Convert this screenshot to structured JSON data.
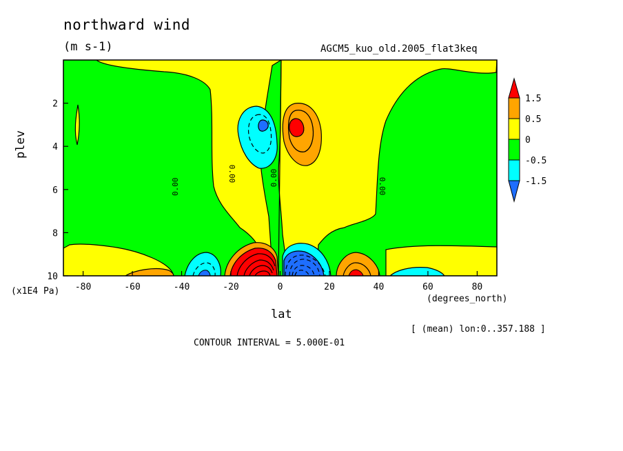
{
  "chart_data": {
    "type": "heatmap",
    "title": "northward wind",
    "units": "(m s-1)",
    "run_label": "AGCM5_kuo_old.2005_flat3keq",
    "xlabel": "lat",
    "x_unit_label": "(degrees_north)",
    "ylabel": "plev",
    "y_unit_label": "(x1E4 Pa)",
    "mean_note": "[ (mean) lon:0..357.188 ]",
    "contour_interval": "CONTOUR INTERVAL = 5.000E-01",
    "xlim": [
      -88,
      88
    ],
    "ylim": [
      10,
      0
    ],
    "x_ticks": [
      "-80",
      "-60",
      "-40",
      "-20",
      "0",
      "20",
      "40",
      "60",
      "80"
    ],
    "y_ticks": [
      "2",
      "4",
      "6",
      "8",
      "10"
    ],
    "contour_labels": [
      "0.00",
      "0.00",
      "0.00",
      "0.00"
    ],
    "legend": {
      "levels": [
        "1.5",
        "0.5",
        "0",
        "-0.5",
        "-1.5"
      ],
      "colors": [
        "#ff0000",
        "#ffa500",
        "#ffff00",
        "#00ff00",
        "#00ffff",
        "#1e6eff"
      ]
    },
    "features": [
      {
        "name": "southern positive maximum",
        "lat": -6,
        "plev": 9.7,
        "value": 2.5
      },
      {
        "name": "northern negative minimum",
        "lat": 8,
        "plev": 9.7,
        "value": -2.5
      },
      {
        "name": "upper negative cell",
        "lat": -8,
        "plev": 3.2,
        "value": -1.5
      },
      {
        "name": "upper positive cell",
        "lat": 7,
        "plev": 3.2,
        "value": 1.5
      }
    ]
  }
}
